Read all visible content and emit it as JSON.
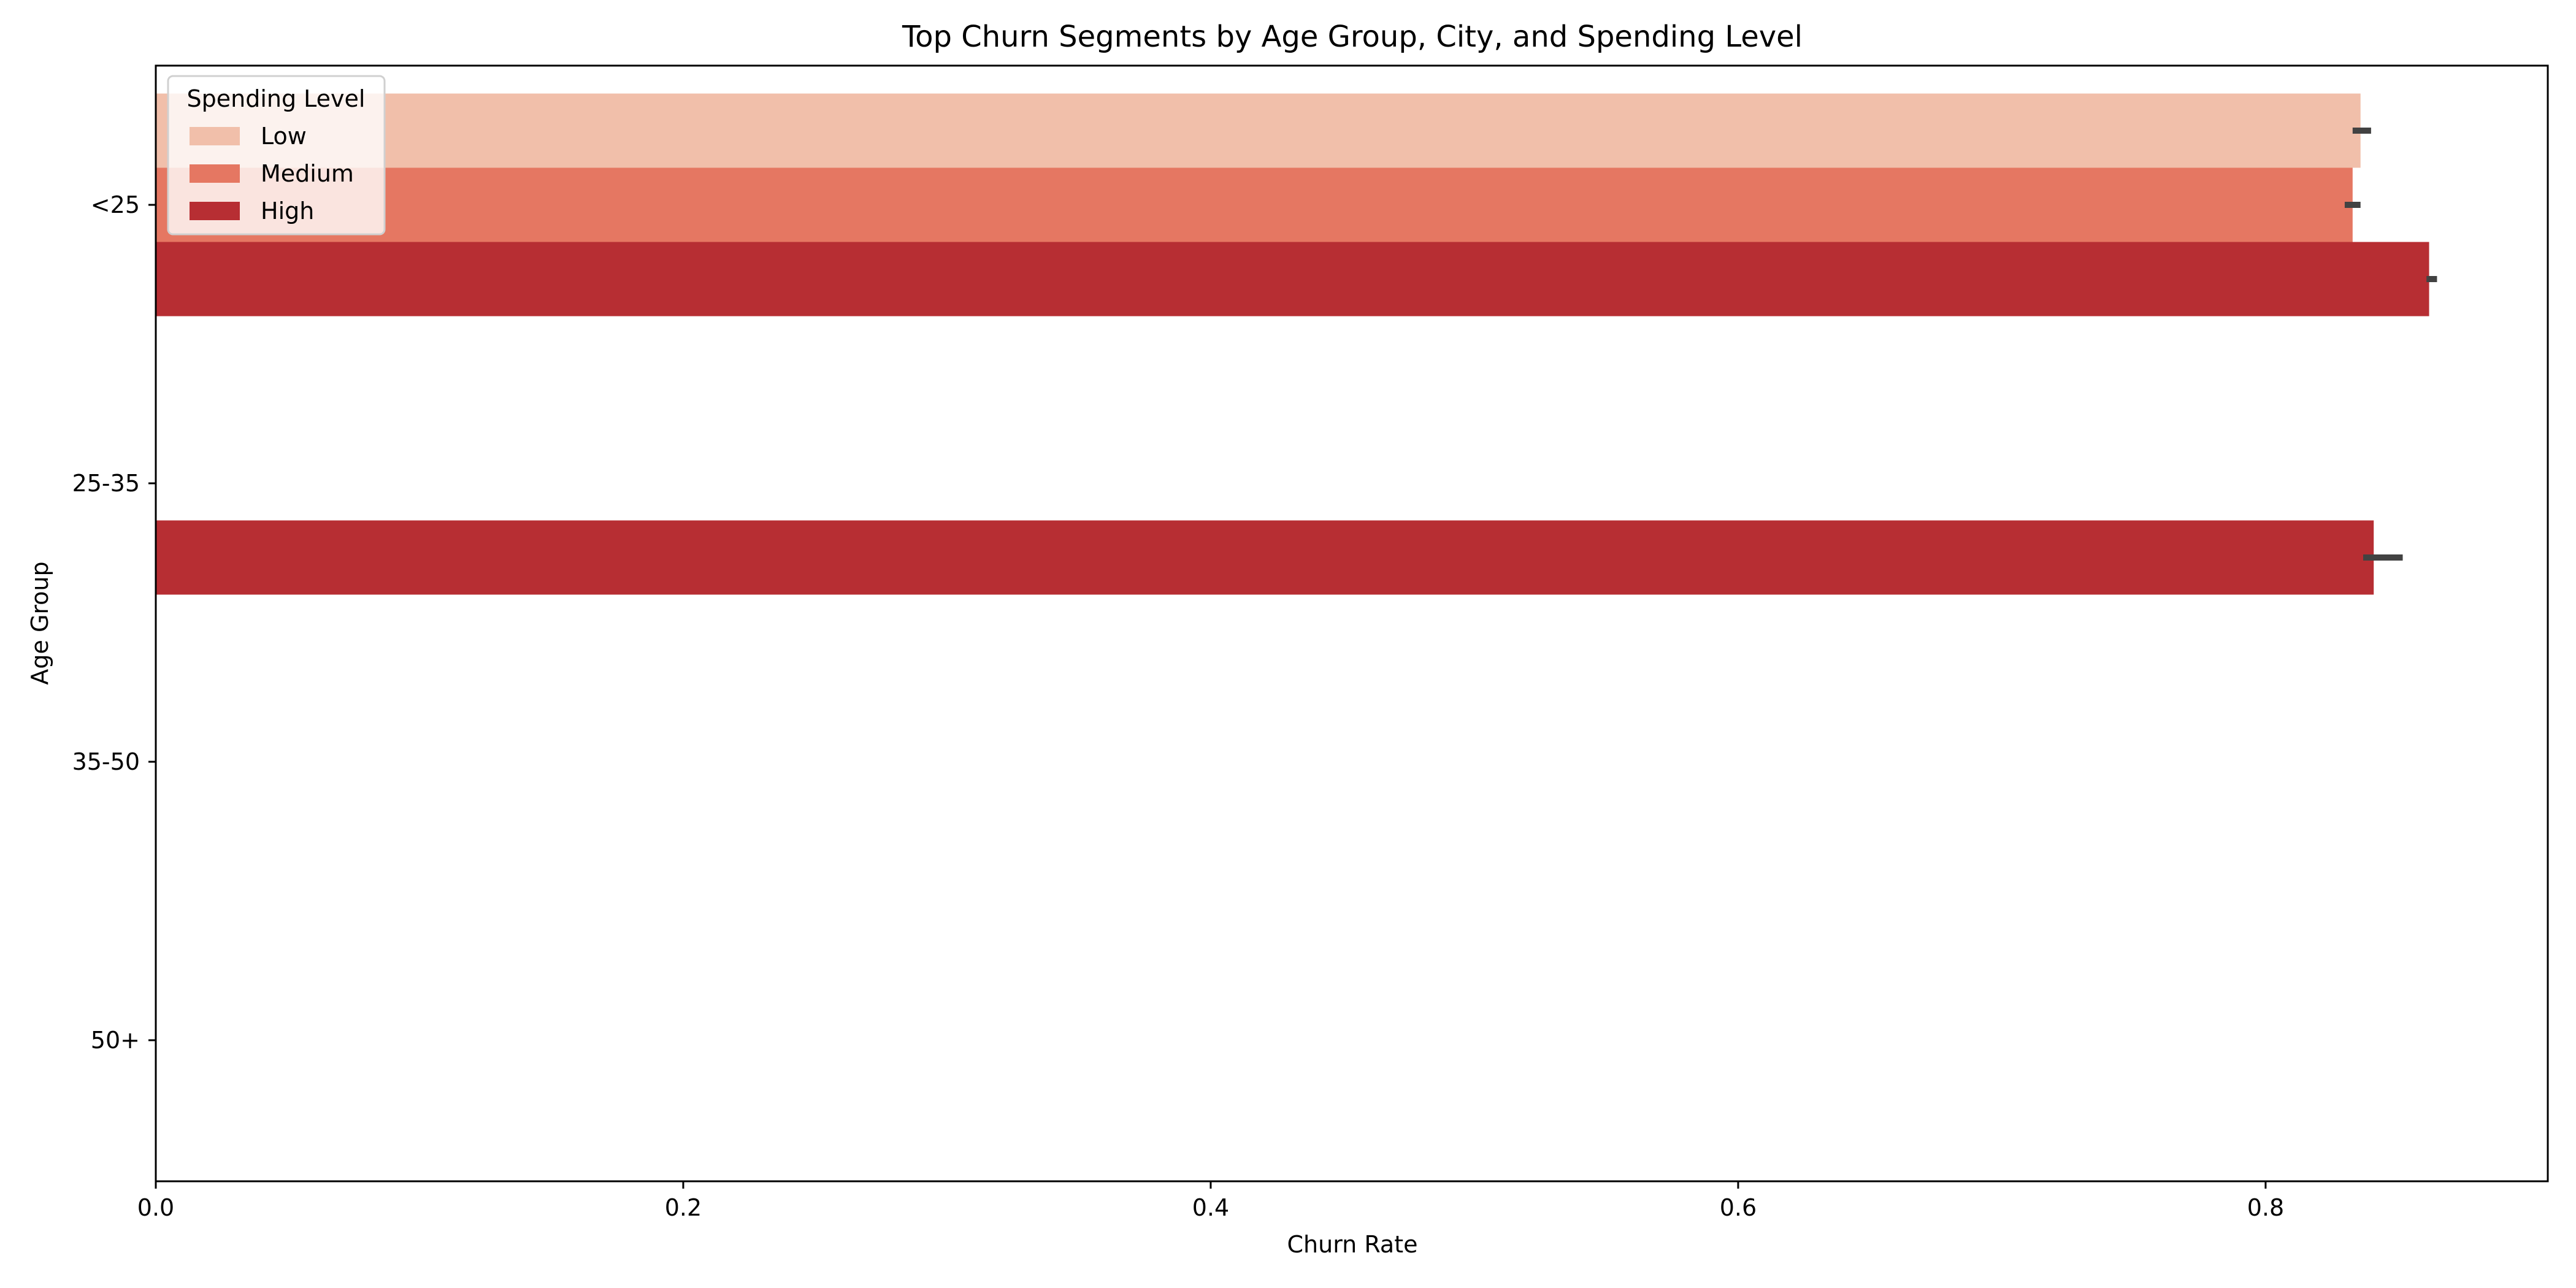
{
  "chart_data": {
    "type": "bar",
    "orientation": "horizontal",
    "title": "Top Churn Segments by Age Group, City, and Spending Level",
    "xlabel": "Churn Rate",
    "ylabel": "Age Group",
    "categories": [
      "<25",
      "25-35",
      "35-50",
      "50+"
    ],
    "xlim": [
      0.0,
      0.907
    ],
    "xticks": [
      0.0,
      0.2,
      0.4,
      0.6,
      0.8
    ],
    "xtick_labels": [
      "0.0",
      "0.2",
      "0.4",
      "0.6",
      "0.8"
    ],
    "grid": false,
    "legend": {
      "title": "Spending Level",
      "placement": "top-left"
    },
    "series": [
      {
        "name": "Low",
        "color": "#f1bfaa",
        "values": [
          0.836,
          null,
          null,
          null
        ],
        "error_bars": [
          [
            0.833,
            0.84
          ],
          null,
          null,
          null
        ]
      },
      {
        "name": "Medium",
        "color": "#e57762",
        "values": [
          0.833,
          null,
          null,
          null
        ],
        "error_bars": [
          [
            0.83,
            0.836
          ],
          null,
          null,
          null
        ]
      },
      {
        "name": "High",
        "color": "#b72e33",
        "values": [
          0.862,
          0.841,
          null,
          null
        ],
        "error_bars": [
          [
            0.861,
            0.865
          ],
          [
            0.837,
            0.852
          ],
          null,
          null
        ]
      }
    ]
  }
}
